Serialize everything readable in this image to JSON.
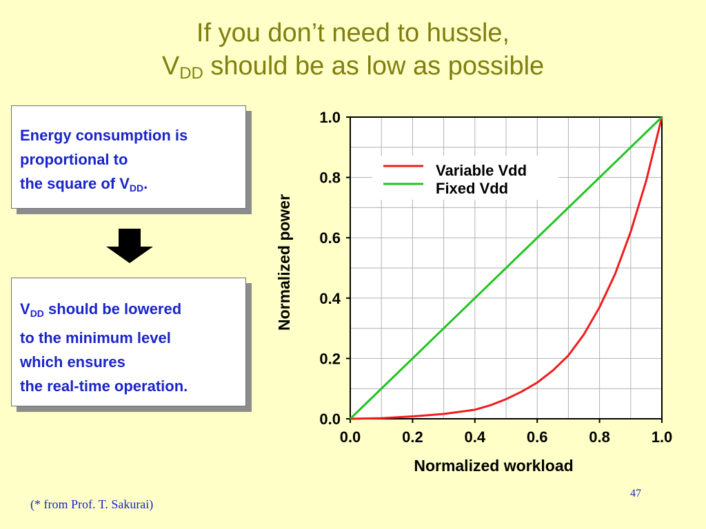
{
  "slide": {
    "title_line1": "If you don’t need to hussle,",
    "title_line2_v": "V",
    "title_line2_sub": "DD",
    "title_line2_rest": " should be as low as possible",
    "page_number": "47",
    "credit": "(* from Prof. T. Sakurai)"
  },
  "box1": {
    "line1": "Energy consumption is",
    "line2": "proportional to",
    "line3_prefix": "the square of V",
    "line3_sub": "DD",
    "line3_suffix": "."
  },
  "box2": {
    "line1_v": "V",
    "line1_sub": "DD",
    "line1_rest": " should be lowered",
    "line2": "to the minimum level",
    "line3": "which ensures",
    "line4": "the real-time operation."
  },
  "chart_data": {
    "type": "line",
    "xlabel": "Normalized workload",
    "ylabel": "Normalized power",
    "xlim": [
      0.0,
      1.0
    ],
    "ylim": [
      0.0,
      1.0
    ],
    "xticks": [
      "0.0",
      "0.2",
      "0.4",
      "0.6",
      "0.8",
      "1.0"
    ],
    "yticks": [
      "0.0",
      "0.2",
      "0.4",
      "0.6",
      "0.8",
      "1.0"
    ],
    "grid": true,
    "legend_position": "top-left",
    "series": [
      {
        "name": "Variable Vdd",
        "color": "#ee1c1c",
        "x": [
          0.0,
          0.1,
          0.2,
          0.3,
          0.4,
          0.45,
          0.5,
          0.55,
          0.6,
          0.65,
          0.7,
          0.75,
          0.8,
          0.85,
          0.9,
          0.95,
          1.0
        ],
        "y": [
          0.0,
          0.002,
          0.008,
          0.016,
          0.03,
          0.045,
          0.065,
          0.09,
          0.12,
          0.16,
          0.21,
          0.28,
          0.37,
          0.48,
          0.62,
          0.79,
          1.0
        ]
      },
      {
        "name": "Fixed Vdd",
        "color": "#1fc41f",
        "x": [
          0.0,
          1.0
        ],
        "y": [
          0.0,
          1.0
        ]
      }
    ]
  }
}
